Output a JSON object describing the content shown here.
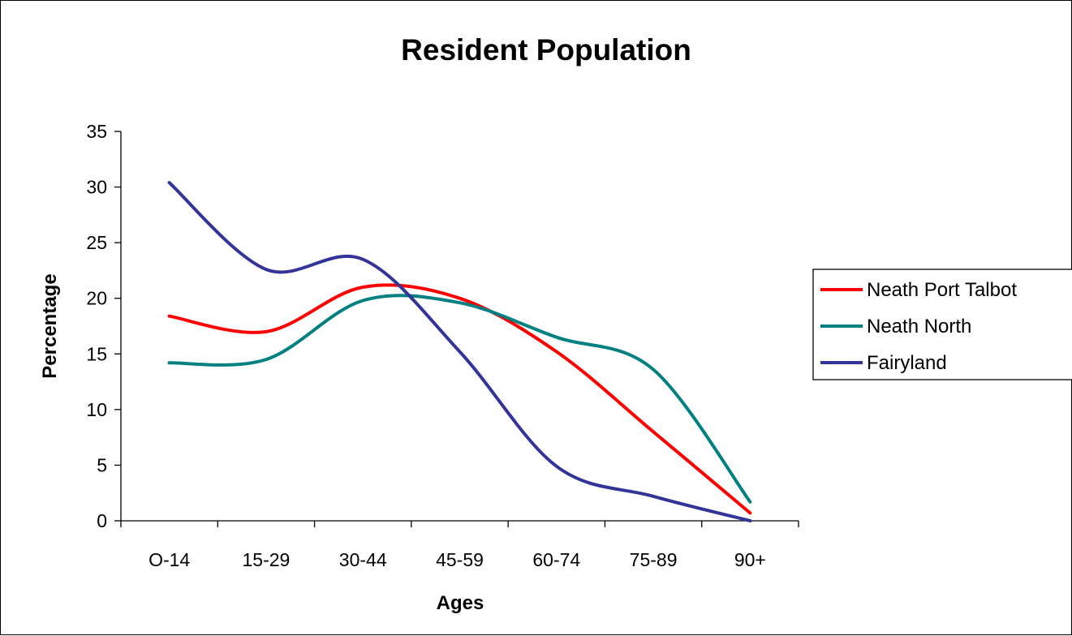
{
  "chart_data": {
    "type": "line",
    "title": "Resident Population",
    "xlabel": "Ages",
    "ylabel": "Percentage",
    "categories": [
      "O-14",
      "15-29",
      "30-44",
      "45-59",
      "60-74",
      "75-89",
      "90+"
    ],
    "ylim": [
      0,
      35
    ],
    "yticks": [
      0,
      5,
      10,
      15,
      20,
      25,
      30,
      35
    ],
    "grid": false,
    "legend_position": "right",
    "smooth": true,
    "series": [
      {
        "name": "Neath Port Talbot",
        "color": "#ff0000",
        "values": [
          18.4,
          17.0,
          21.0,
          20.0,
          15.2,
          8.0,
          0.7
        ]
      },
      {
        "name": "Neath North",
        "color": "#008080",
        "values": [
          14.2,
          14.5,
          19.8,
          19.6,
          16.5,
          13.6,
          1.7
        ]
      },
      {
        "name": "Fairyland",
        "color": "#333399",
        "values": [
          30.4,
          22.6,
          23.5,
          15.2,
          4.9,
          2.2,
          0.0
        ]
      }
    ]
  }
}
